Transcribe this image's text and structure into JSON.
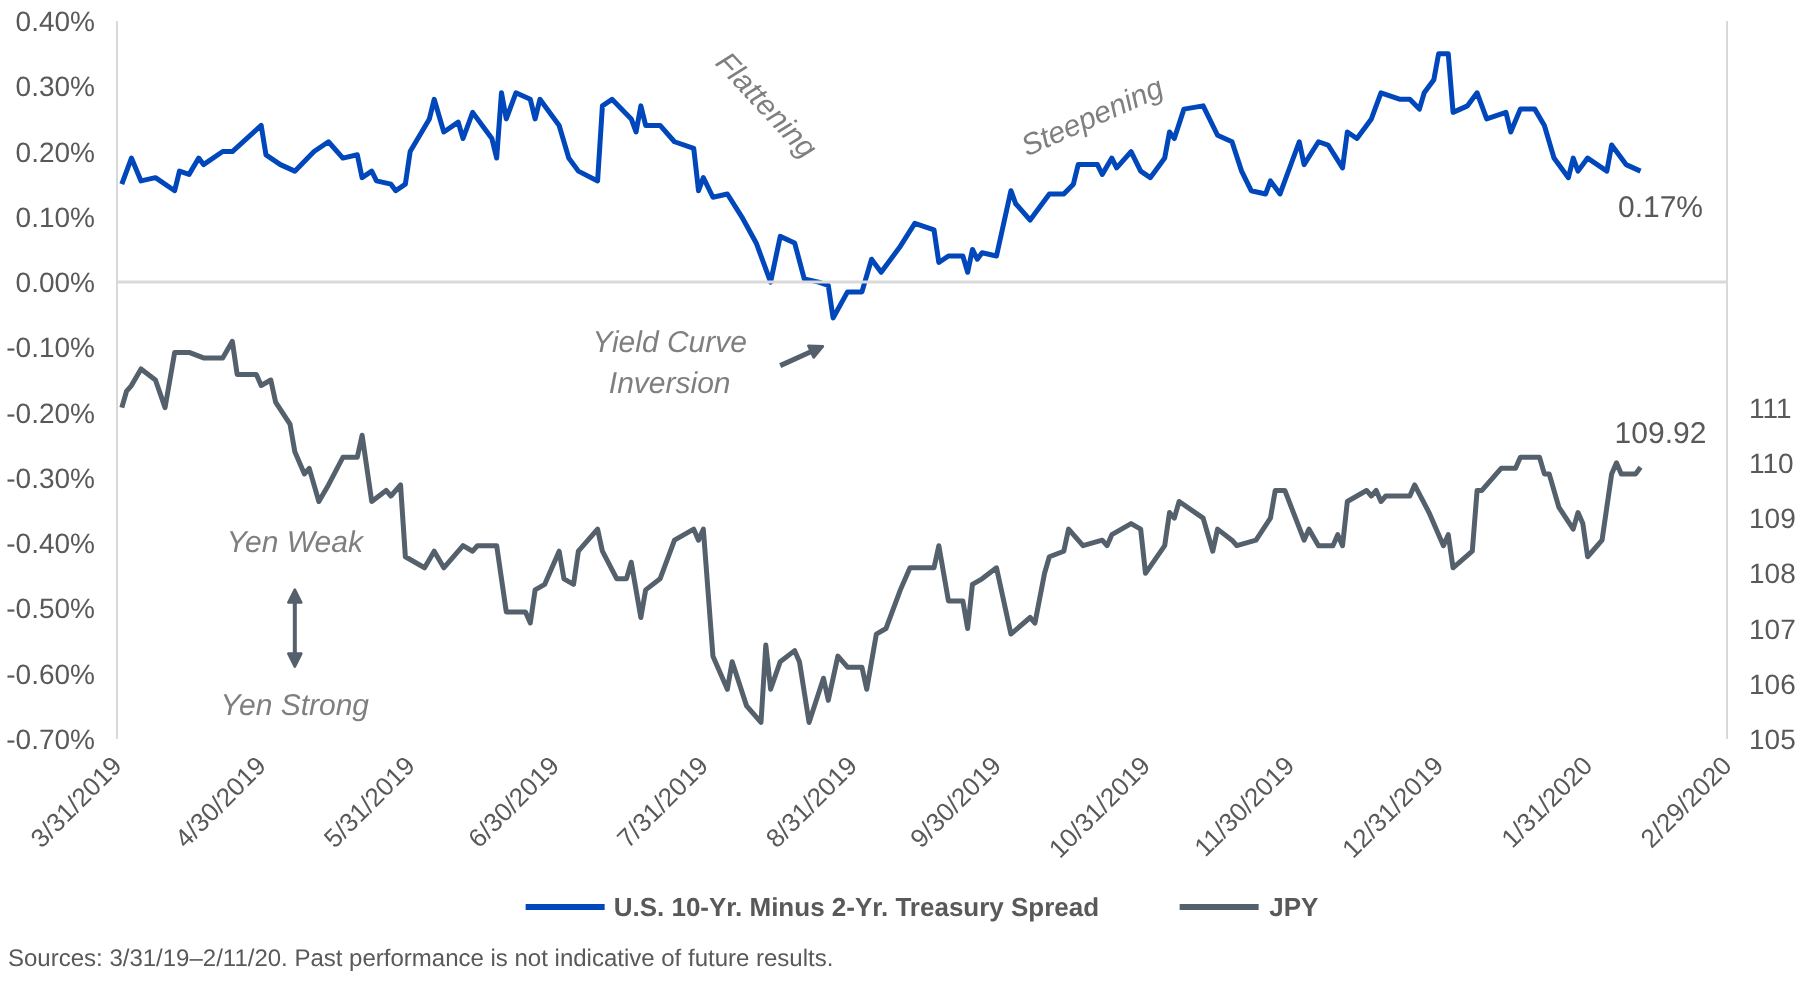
{
  "chart_data": {
    "type": "line",
    "xlim": [
      "2019-03-31",
      "2020-02-29"
    ],
    "xticks": [
      {
        "value": "2019-03-31",
        "label": "3/31/2019"
      },
      {
        "value": "2019-04-30",
        "label": "4/30/2019"
      },
      {
        "value": "2019-05-31",
        "label": "5/31/2019"
      },
      {
        "value": "2019-06-30",
        "label": "6/30/2019"
      },
      {
        "value": "2019-07-31",
        "label": "7/31/2019"
      },
      {
        "value": "2019-08-31",
        "label": "8/31/2019"
      },
      {
        "value": "2019-09-30",
        "label": "9/30/2019"
      },
      {
        "value": "2019-10-31",
        "label": "10/31/2019"
      },
      {
        "value": "2019-11-30",
        "label": "11/30/2019"
      },
      {
        "value": "2019-12-31",
        "label": "12/31/2019"
      },
      {
        "value": "2020-01-31",
        "label": "1/31/2020"
      },
      {
        "value": "2020-02-29",
        "label": "2/29/2020"
      }
    ],
    "ylim": [
      -0.7,
      0.4
    ],
    "yticks": [
      {
        "value": -0.7,
        "label": "-0.70%"
      },
      {
        "value": -0.6,
        "label": "-0.60%"
      },
      {
        "value": -0.5,
        "label": "-0.50%"
      },
      {
        "value": -0.4,
        "label": "-0.40%"
      },
      {
        "value": -0.3,
        "label": "-0.30%"
      },
      {
        "value": -0.2,
        "label": "-0.20%"
      },
      {
        "value": -0.1,
        "label": "-0.10%"
      },
      {
        "value": 0,
        "label": "0.00%"
      },
      {
        "value": 0.1,
        "label": "0.10%"
      },
      {
        "value": 0.2,
        "label": "0.20%"
      },
      {
        "value": 0.3,
        "label": "0.30%"
      },
      {
        "value": 0.4,
        "label": "0.40%"
      }
    ],
    "y2lim": [
      105,
      118
    ],
    "y2ticks": [
      105,
      106,
      107,
      108,
      109,
      110,
      111
    ],
    "grid": false,
    "legend": "bottom",
    "ref_lines": [
      {
        "axis": "y",
        "value": 0,
        "color": "#d9d9d9"
      }
    ],
    "annotations": [
      "Flattening",
      "Steepening",
      "Yield Curve Inversion",
      "Yen Weak",
      "Yen Strong",
      "Sources: 3/31/19–2/11/20. Past performance is not indicative of future results."
    ],
    "series": [
      {
        "name": "U.S. 10-Yr. Minus 2-Yr. Treasury Spread",
        "color": "#0047bb",
        "x": [
          "2019-04-01",
          "2019-04-03",
          "2019-04-05",
          "2019-04-08",
          "2019-04-12",
          "2019-04-13",
          "2019-04-15",
          "2019-04-17",
          "2019-04-18",
          "2019-04-22",
          "2019-04-24",
          "2019-04-30",
          "2019-05-01",
          "2019-05-04",
          "2019-05-07",
          "2019-05-11",
          "2019-05-14",
          "2019-05-17",
          "2019-05-20",
          "2019-05-21",
          "2019-05-23",
          "2019-05-24",
          "2019-05-27",
          "2019-05-28",
          "2019-05-30",
          "2019-05-31",
          "2019-06-04",
          "2019-06-05",
          "2019-06-07",
          "2019-06-10",
          "2019-06-11",
          "2019-06-13",
          "2019-06-15",
          "2019-06-17",
          "2019-06-18",
          "2019-06-19",
          "2019-06-20",
          "2019-06-22",
          "2019-06-25",
          "2019-06-26",
          "2019-06-27",
          "2019-07-01",
          "2019-07-03",
          "2019-07-05",
          "2019-07-09",
          "2019-07-10",
          "2019-07-12",
          "2019-07-16",
          "2019-07-17",
          "2019-07-18",
          "2019-07-19",
          "2019-07-22",
          "2019-07-25",
          "2019-07-29",
          "2019-07-30",
          "2019-07-31",
          "2019-08-02",
          "2019-08-05",
          "2019-08-08",
          "2019-08-11",
          "2019-08-14",
          "2019-08-16",
          "2019-08-19",
          "2019-08-21",
          "2019-08-24",
          "2019-08-26",
          "2019-08-27",
          "2019-08-30",
          "2019-09-02",
          "2019-09-04",
          "2019-09-06",
          "2019-09-10",
          "2019-09-13",
          "2019-09-17",
          "2019-09-18",
          "2019-09-20",
          "2019-09-23",
          "2019-09-24",
          "2019-09-25",
          "2019-09-26",
          "2019-09-27",
          "2019-09-30",
          "2019-10-03",
          "2019-10-04",
          "2019-10-07",
          "2019-10-11",
          "2019-10-14",
          "2019-10-16",
          "2019-10-17",
          "2019-10-21",
          "2019-10-22",
          "2019-10-24",
          "2019-10-25",
          "2019-10-28",
          "2019-10-30",
          "2019-11-01",
          "2019-11-04",
          "2019-11-05",
          "2019-11-06",
          "2019-11-08",
          "2019-11-12",
          "2019-11-15",
          "2019-11-18",
          "2019-11-20",
          "2019-11-22",
          "2019-11-25",
          "2019-11-26",
          "2019-11-28",
          "2019-12-02",
          "2019-12-03",
          "2019-12-06",
          "2019-12-08",
          "2019-12-11",
          "2019-12-12",
          "2019-12-14",
          "2019-12-17",
          "2019-12-19",
          "2019-12-23",
          "2019-12-25",
          "2019-12-27",
          "2019-12-28",
          "2019-12-30",
          "2019-12-31",
          "2020-01-02",
          "2020-01-03",
          "2020-01-06",
          "2020-01-08",
          "2020-01-10",
          "2020-01-14",
          "2020-01-15",
          "2020-01-17",
          "2020-01-20",
          "2020-01-22",
          "2020-01-24",
          "2020-01-27",
          "2020-01-28",
          "2020-01-29",
          "2020-01-31",
          "2020-02-04",
          "2020-02-05",
          "2020-02-08",
          "2020-02-11"
        ],
        "values": [
          0.15,
          0.19,
          0.155,
          0.16,
          0.14,
          0.17,
          0.165,
          0.19,
          0.18,
          0.2,
          0.2,
          0.24,
          0.195,
          0.18,
          0.17,
          0.2,
          0.215,
          0.19,
          0.195,
          0.16,
          0.17,
          0.155,
          0.15,
          0.14,
          0.15,
          0.2,
          0.25,
          0.28,
          0.23,
          0.245,
          0.22,
          0.26,
          0.24,
          0.22,
          0.19,
          0.29,
          0.25,
          0.29,
          0.28,
          0.25,
          0.28,
          0.24,
          0.19,
          0.17,
          0.155,
          0.27,
          0.28,
          0.25,
          0.23,
          0.27,
          0.24,
          0.24,
          0.215,
          0.205,
          0.14,
          0.16,
          0.13,
          0.135,
          0.1,
          0.06,
          0.0,
          0.07,
          0.06,
          0.005,
          0.0,
          -0.005,
          -0.055,
          -0.015,
          -0.015,
          0.035,
          0.015,
          0.055,
          0.09,
          0.08,
          0.03,
          0.04,
          0.04,
          0.015,
          0.05,
          0.035,
          0.045,
          0.04,
          0.14,
          0.12,
          0.095,
          0.135,
          0.135,
          0.15,
          0.18,
          0.18,
          0.165,
          0.19,
          0.175,
          0.2,
          0.17,
          0.16,
          0.19,
          0.23,
          0.22,
          0.265,
          0.27,
          0.225,
          0.215,
          0.17,
          0.14,
          0.135,
          0.155,
          0.135,
          0.215,
          0.18,
          0.215,
          0.21,
          0.175,
          0.23,
          0.22,
          0.25,
          0.29,
          0.28,
          0.28,
          0.265,
          0.29,
          0.31,
          0.35,
          0.35,
          0.26,
          0.27,
          0.29,
          0.25,
          0.26,
          0.23,
          0.265,
          0.265,
          0.24,
          0.19,
          0.16,
          0.19,
          0.17,
          0.19,
          0.17,
          0.21,
          0.18,
          0.17
        ],
        "value_labels": [
          null,
          null,
          null,
          null,
          null,
          null,
          null,
          null,
          null,
          null,
          null,
          null,
          null,
          null,
          null,
          null,
          null,
          null,
          null,
          null,
          null,
          null,
          null,
          null,
          null,
          null,
          null,
          null,
          null,
          null,
          null,
          null,
          null,
          null,
          null,
          null,
          null,
          null,
          null,
          null,
          null,
          null,
          null,
          null,
          null,
          null,
          null,
          null,
          null,
          null,
          null,
          null,
          null,
          null,
          null,
          null,
          null,
          null,
          null,
          null,
          null,
          null,
          null,
          null,
          null,
          null,
          null,
          null,
          null,
          null,
          null,
          null,
          null,
          null,
          null,
          null,
          null,
          null,
          null,
          null,
          null,
          null,
          null,
          null,
          null,
          null,
          null,
          null,
          null,
          null,
          null,
          null,
          null,
          null,
          null,
          null,
          null,
          null,
          null,
          null,
          null,
          null,
          null,
          null,
          null,
          null,
          null,
          null,
          null,
          null,
          null,
          null,
          null,
          null,
          null,
          null,
          null,
          null,
          null,
          null,
          null,
          null,
          null,
          null,
          null,
          null,
          null,
          null,
          null,
          null,
          null,
          null,
          null,
          null,
          null,
          null,
          null,
          null,
          null,
          null,
          null,
          "0.17%"
        ]
      },
      {
        "name": "JPY",
        "color": "#54606b",
        "axis": "y2",
        "x": [
          "2019-04-01",
          "2019-04-02",
          "2019-04-03",
          "2019-04-05",
          "2019-04-08",
          "2019-04-10",
          "2019-04-12",
          "2019-04-15",
          "2019-04-18",
          "2019-04-22",
          "2019-04-24",
          "2019-04-25",
          "2019-04-29",
          "2019-04-30",
          "2019-05-02",
          "2019-05-03",
          "2019-05-06",
          "2019-05-07",
          "2019-05-09",
          "2019-05-10",
          "2019-05-12",
          "2019-05-14",
          "2019-05-17",
          "2019-05-20",
          "2019-05-21",
          "2019-05-23",
          "2019-05-26",
          "2019-05-27",
          "2019-05-29",
          "2019-05-30",
          "2019-06-03",
          "2019-06-05",
          "2019-06-07",
          "2019-06-11",
          "2019-06-13",
          "2019-06-14",
          "2019-06-18",
          "2019-06-20",
          "2019-06-24",
          "2019-06-25",
          "2019-06-26",
          "2019-06-28",
          "2019-07-01",
          "2019-07-02",
          "2019-07-04",
          "2019-07-05",
          "2019-07-09",
          "2019-07-10",
          "2019-07-13",
          "2019-07-15",
          "2019-07-16",
          "2019-07-18",
          "2019-07-19",
          "2019-07-22",
          "2019-07-25",
          "2019-07-29",
          "2019-07-30",
          "2019-07-31",
          "2019-08-02",
          "2019-08-05",
          "2019-08-06",
          "2019-08-09",
          "2019-08-12",
          "2019-08-13",
          "2019-08-14",
          "2019-08-16",
          "2019-08-19",
          "2019-08-20",
          "2019-08-22",
          "2019-08-25",
          "2019-08-26",
          "2019-08-28",
          "2019-08-30",
          "2019-09-02",
          "2019-09-03",
          "2019-09-05",
          "2019-09-07",
          "2019-09-10",
          "2019-09-12",
          "2019-09-17",
          "2019-09-18",
          "2019-09-20",
          "2019-09-23",
          "2019-09-24",
          "2019-09-25",
          "2019-09-27",
          "2019-09-30",
          "2019-10-03",
          "2019-10-07",
          "2019-10-08",
          "2019-10-10",
          "2019-10-11",
          "2019-10-14",
          "2019-10-15",
          "2019-10-18",
          "2019-10-22",
          "2019-10-23",
          "2019-10-24",
          "2019-10-28",
          "2019-10-30",
          "2019-10-31",
          "2019-11-04",
          "2019-11-05",
          "2019-11-06",
          "2019-11-07",
          "2019-11-12",
          "2019-11-14",
          "2019-11-15",
          "2019-11-18",
          "2019-11-19",
          "2019-11-23",
          "2019-11-26",
          "2019-11-27",
          "2019-11-29",
          "2019-12-03",
          "2019-12-04",
          "2019-12-06",
          "2019-12-09",
          "2019-12-10",
          "2019-12-11",
          "2019-12-12",
          "2019-12-16",
          "2019-12-17",
          "2019-12-18",
          "2019-12-19",
          "2019-12-20",
          "2019-12-25",
          "2019-12-26",
          "2019-12-29",
          "2019-12-31",
          "2020-01-01",
          "2020-01-02",
          "2020-01-03",
          "2020-01-07",
          "2020-01-08",
          "2020-01-09",
          "2020-01-13",
          "2020-01-15",
          "2020-01-16",
          "2020-01-17",
          "2020-01-21",
          "2020-01-22",
          "2020-01-23",
          "2020-01-25",
          "2020-01-28",
          "2020-01-29",
          "2020-01-30",
          "2020-01-31",
          "2020-02-03",
          "2020-02-05",
          "2020-02-06",
          "2020-02-07",
          "2020-02-10",
          "2020-02-11"
        ],
        "values": [
          111.0,
          111.3,
          111.4,
          111.7,
          111.5,
          111.0,
          112.0,
          112.0,
          111.9,
          111.9,
          112.2,
          111.6,
          111.6,
          111.4,
          111.5,
          111.1,
          110.7,
          110.2,
          109.8,
          109.9,
          109.3,
          109.6,
          110.1,
          110.1,
          110.5,
          109.3,
          109.5,
          109.4,
          109.6,
          108.3,
          108.1,
          108.4,
          108.1,
          108.5,
          108.4,
          108.5,
          108.5,
          107.3,
          107.3,
          107.1,
          107.7,
          107.8,
          108.4,
          107.9,
          107.8,
          108.4,
          108.8,
          108.4,
          107.9,
          107.9,
          108.2,
          107.2,
          107.7,
          107.9,
          108.6,
          108.8,
          108.6,
          108.8,
          106.5,
          105.9,
          106.4,
          105.6,
          105.3,
          106.7,
          105.9,
          106.4,
          106.6,
          106.4,
          105.3,
          106.1,
          105.7,
          106.5,
          106.3,
          106.3,
          105.9,
          106.9,
          107.0,
          107.7,
          108.1,
          108.1,
          108.5,
          107.5,
          107.5,
          107.0,
          107.8,
          107.9,
          108.1,
          106.9,
          107.2,
          107.1,
          108.0,
          108.3,
          108.4,
          108.8,
          108.5,
          108.6,
          108.5,
          108.7,
          108.9,
          108.8,
          108.0,
          108.5,
          109.1,
          109.0,
          109.3,
          109.0,
          108.4,
          108.8,
          108.6,
          108.5,
          108.6,
          109.0,
          109.5,
          109.5,
          108.6,
          108.8,
          108.5,
          108.5,
          108.7,
          108.5,
          109.3,
          109.5,
          109.4,
          109.5,
          109.3,
          109.4,
          109.4,
          109.6,
          109.1,
          108.7,
          108.5,
          108.7,
          108.1,
          108.4,
          109.5,
          109.5,
          109.9,
          109.9,
          109.9,
          110.1,
          110.1,
          109.8,
          109.8,
          109.2,
          108.8,
          109.1,
          108.9,
          108.3,
          108.6,
          109.8,
          110.0,
          109.8,
          109.8,
          109.92
        ],
        "value_labels": [
          null,
          null,
          null,
          null,
          null,
          null,
          null,
          null,
          null,
          null,
          null,
          null,
          null,
          null,
          null,
          null,
          null,
          null,
          null,
          null,
          null,
          null,
          null,
          null,
          null,
          null,
          null,
          null,
          null,
          null,
          null,
          null,
          null,
          null,
          null,
          null,
          null,
          null,
          null,
          null,
          null,
          null,
          null,
          null,
          null,
          null,
          null,
          null,
          null,
          null,
          null,
          null,
          null,
          null,
          null,
          null,
          null,
          null,
          null,
          null,
          null,
          null,
          null,
          null,
          null,
          null,
          null,
          null,
          null,
          null,
          null,
          null,
          null,
          null,
          null,
          null,
          null,
          null,
          null,
          null,
          null,
          null,
          null,
          null,
          null,
          null,
          null,
          null,
          null,
          null,
          null,
          null,
          null,
          null,
          null,
          null,
          null,
          null,
          null,
          null,
          null,
          null,
          null,
          null,
          null,
          null,
          null,
          null,
          null,
          null,
          null,
          null,
          null,
          null,
          null,
          null,
          null,
          null,
          null,
          null,
          null,
          null,
          null,
          null,
          null,
          null,
          null,
          null,
          null,
          null,
          null,
          null,
          null,
          null,
          null,
          null,
          null,
          null,
          null,
          null,
          null,
          null,
          null,
          null,
          null,
          null,
          null,
          null,
          null,
          null,
          null,
          null,
          null,
          "109.92"
        ]
      }
    ]
  }
}
